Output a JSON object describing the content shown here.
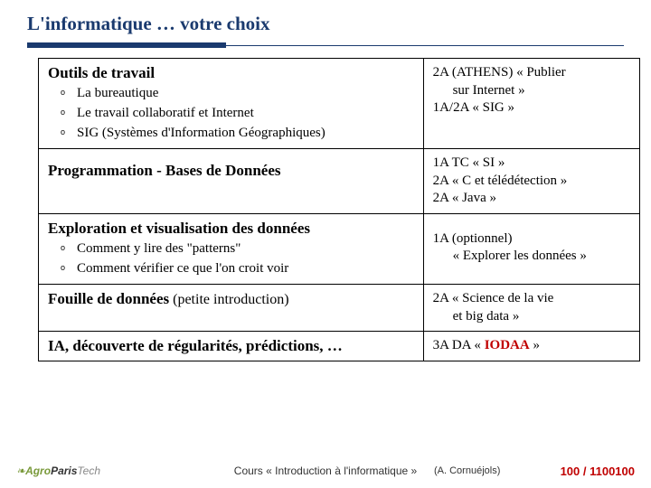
{
  "title_color": "#1a3a6e",
  "page_color": "#c00000",
  "slide": {
    "title": "L'informatique … votre choix"
  },
  "rows": [
    {
      "left": {
        "heading": "Outils de travail",
        "items": [
          "La bureautique",
          "Le travail collaboratif et Internet",
          "SIG (Systèmes d'Information Géographiques)"
        ]
      },
      "right": {
        "lines": [
          {
            "text": "2A (ATHENS) « Publier",
            "indent": false
          },
          {
            "text": "sur Internet »",
            "indent": true
          },
          {
            "text": "1A/2A « SIG »",
            "indent": false
          }
        ]
      }
    },
    {
      "left": {
        "heading": "Programmation  -  Bases de Données"
      },
      "right": {
        "lines": [
          {
            "text": "1A   TC  « SI »",
            "indent": false
          },
          {
            "text": "2A  « C et télédétection »",
            "indent": false
          },
          {
            "text": "2A  « Java »",
            "indent": false
          }
        ]
      }
    },
    {
      "left": {
        "heading": "Exploration et visualisation des données",
        "items": [
          "Comment y lire des \"patterns\"",
          "Comment vérifier ce que l'on croit voir"
        ]
      },
      "right": {
        "lines": [
          {
            "text": "1A (optionnel)",
            "indent": false
          },
          {
            "text": "« Explorer les données »",
            "indent": true
          }
        ]
      }
    },
    {
      "left": {
        "heading_inline": "Fouille de données",
        "note": "  (petite introduction)"
      },
      "right": {
        "lines": [
          {
            "text": "2A  « Science de la vie",
            "indent": false
          },
          {
            "text": "et big data »",
            "indent": true
          }
        ]
      }
    },
    {
      "left": {
        "heading_inline": "IA, découverte de régularités, prédictions, …"
      },
      "right": {
        "lines_html": "3A   DA  « <span class='red'>IODAA</span> »"
      }
    }
  ],
  "footer": {
    "course": "Cours  « Introduction à l'informatique »",
    "author": "(A. Cornuéjols)",
    "page": "100 / 1100100"
  }
}
